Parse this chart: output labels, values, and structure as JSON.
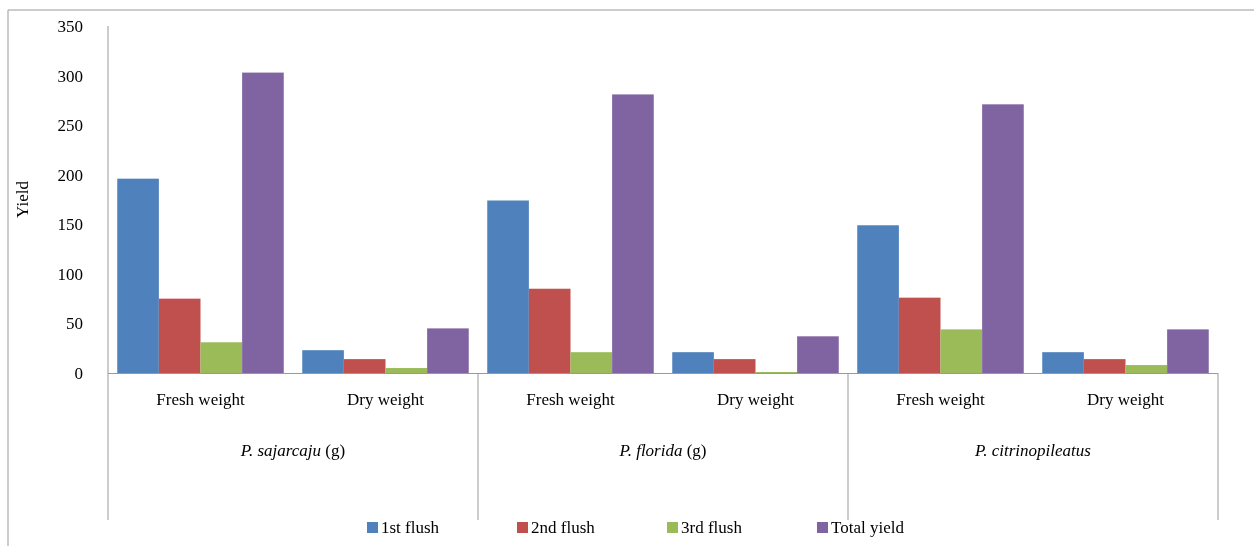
{
  "chart_data": {
    "type": "bar",
    "ylabel": "Yield",
    "categories": [
      "Fresh weight",
      "Dry weight",
      "Fresh weight",
      "Dry weight",
      "Fresh weight",
      "Dry weight"
    ],
    "series": [
      {
        "name": "1st flush",
        "color": "#4f81bd",
        "values": [
          196,
          23,
          174,
          21,
          149,
          21
        ]
      },
      {
        "name": "2nd flush",
        "color": "#c0504d",
        "values": [
          75,
          14,
          85,
          14,
          76,
          14
        ]
      },
      {
        "name": "3rd flush",
        "color": "#9bbb59",
        "values": [
          31,
          5,
          21,
          1,
          44,
          8
        ]
      },
      {
        "name": "Total yield",
        "color": "#8064a2",
        "values": [
          303,
          45,
          281,
          37,
          271,
          44
        ]
      }
    ],
    "annotations": [
      "P. sajarcaju (g)",
      "P. florida (g)",
      "P. citrinopileatus"
    ],
    "ylim": [
      0,
      350
    ],
    "yticks": [
      0,
      50,
      100,
      150,
      200,
      250,
      300,
      350
    ],
    "grid": false,
    "legend": "bottom"
  }
}
